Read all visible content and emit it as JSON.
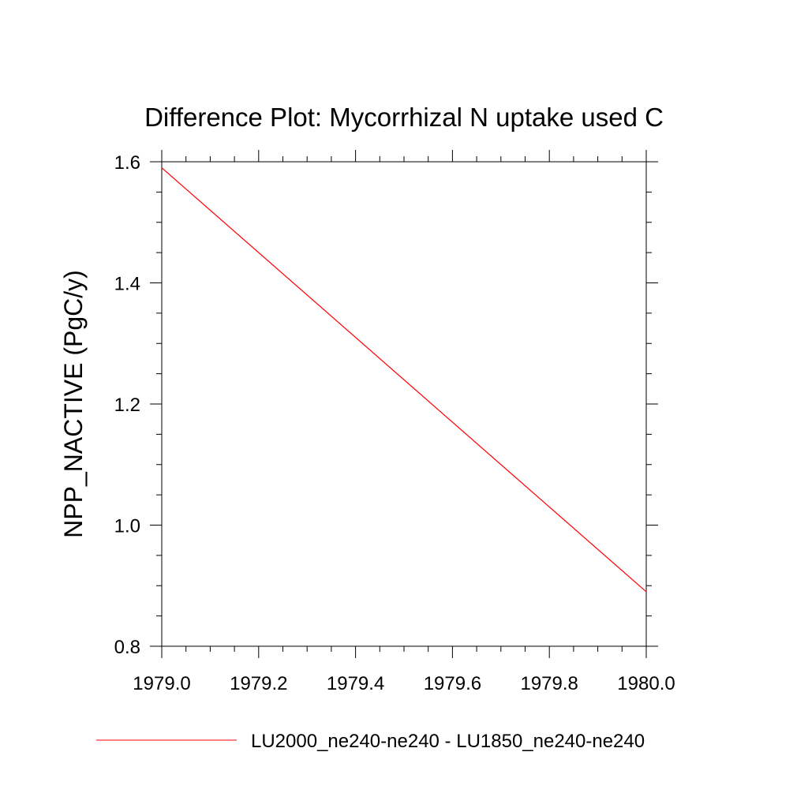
{
  "chart_data": {
    "type": "line",
    "title": "Difference Plot: Mycorrhizal N uptake used C",
    "xlabel": "",
    "ylabel": "NPP_NACTIVE  (PgC/y)",
    "xlim": [
      1979.0,
      1980.0
    ],
    "ylim": [
      0.8,
      1.6
    ],
    "x_ticks": [
      "1979.0",
      "1979.2",
      "1979.4",
      "1979.6",
      "1979.8",
      "1980.0"
    ],
    "y_ticks": [
      "0.8",
      "1.0",
      "1.2",
      "1.4",
      "1.6"
    ],
    "x_tick_values": [
      1979.0,
      1979.2,
      1979.4,
      1979.6,
      1979.8,
      1980.0
    ],
    "y_tick_values": [
      0.8,
      1.0,
      1.2,
      1.4,
      1.6
    ],
    "grid": false,
    "legend_position": "bottom",
    "series": [
      {
        "name": "LU2000_ne240-ne240 - LU1850_ne240-ne240",
        "color": "#ff0000",
        "x": [
          1979.0,
          1980.0
        ],
        "y": [
          1.59,
          0.89
        ]
      }
    ]
  }
}
